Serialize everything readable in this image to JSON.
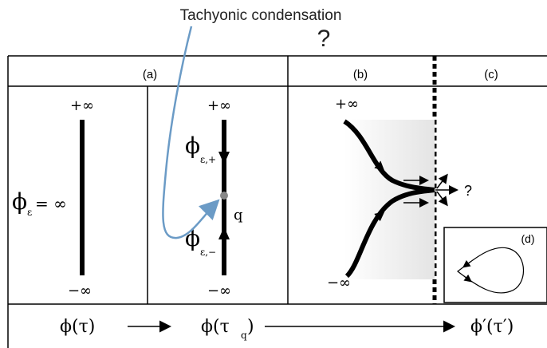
{
  "annotation": {
    "title": "Tachyonic condensation",
    "question_top": "?",
    "arrow_color": "#6b9bc6"
  },
  "panels": {
    "a_label": "(a)",
    "b_label": "(b)",
    "c_label": "(c)",
    "d_label": "(d)"
  },
  "panel_a_left": {
    "plus_inf": "+∞",
    "minus_inf": "−∞",
    "phi": "ϕ",
    "phi_sub": "ε",
    "phi_rhs": "= ∞"
  },
  "panel_a_right": {
    "plus_inf": "+∞",
    "minus_inf": "−∞",
    "phi_top": "ϕ",
    "phi_top_sub": "ε,+",
    "phi_bottom": "ϕ",
    "phi_bottom_sub": "ε,−",
    "point_label": "q"
  },
  "panel_b": {
    "plus_inf": "+∞",
    "minus_inf": "−∞",
    "question": "?"
  },
  "bottom_row": {
    "phi_tau": "ϕ(τ)",
    "phi_tau_q": "ϕ(τ",
    "tau_q_sub": "q",
    "tau_q_close": ")",
    "phi_prime": "ϕ′(τ′)"
  },
  "colors": {
    "lines": "#000000",
    "point": "#888888",
    "trajectory_shade": "#dcdcdc"
  }
}
